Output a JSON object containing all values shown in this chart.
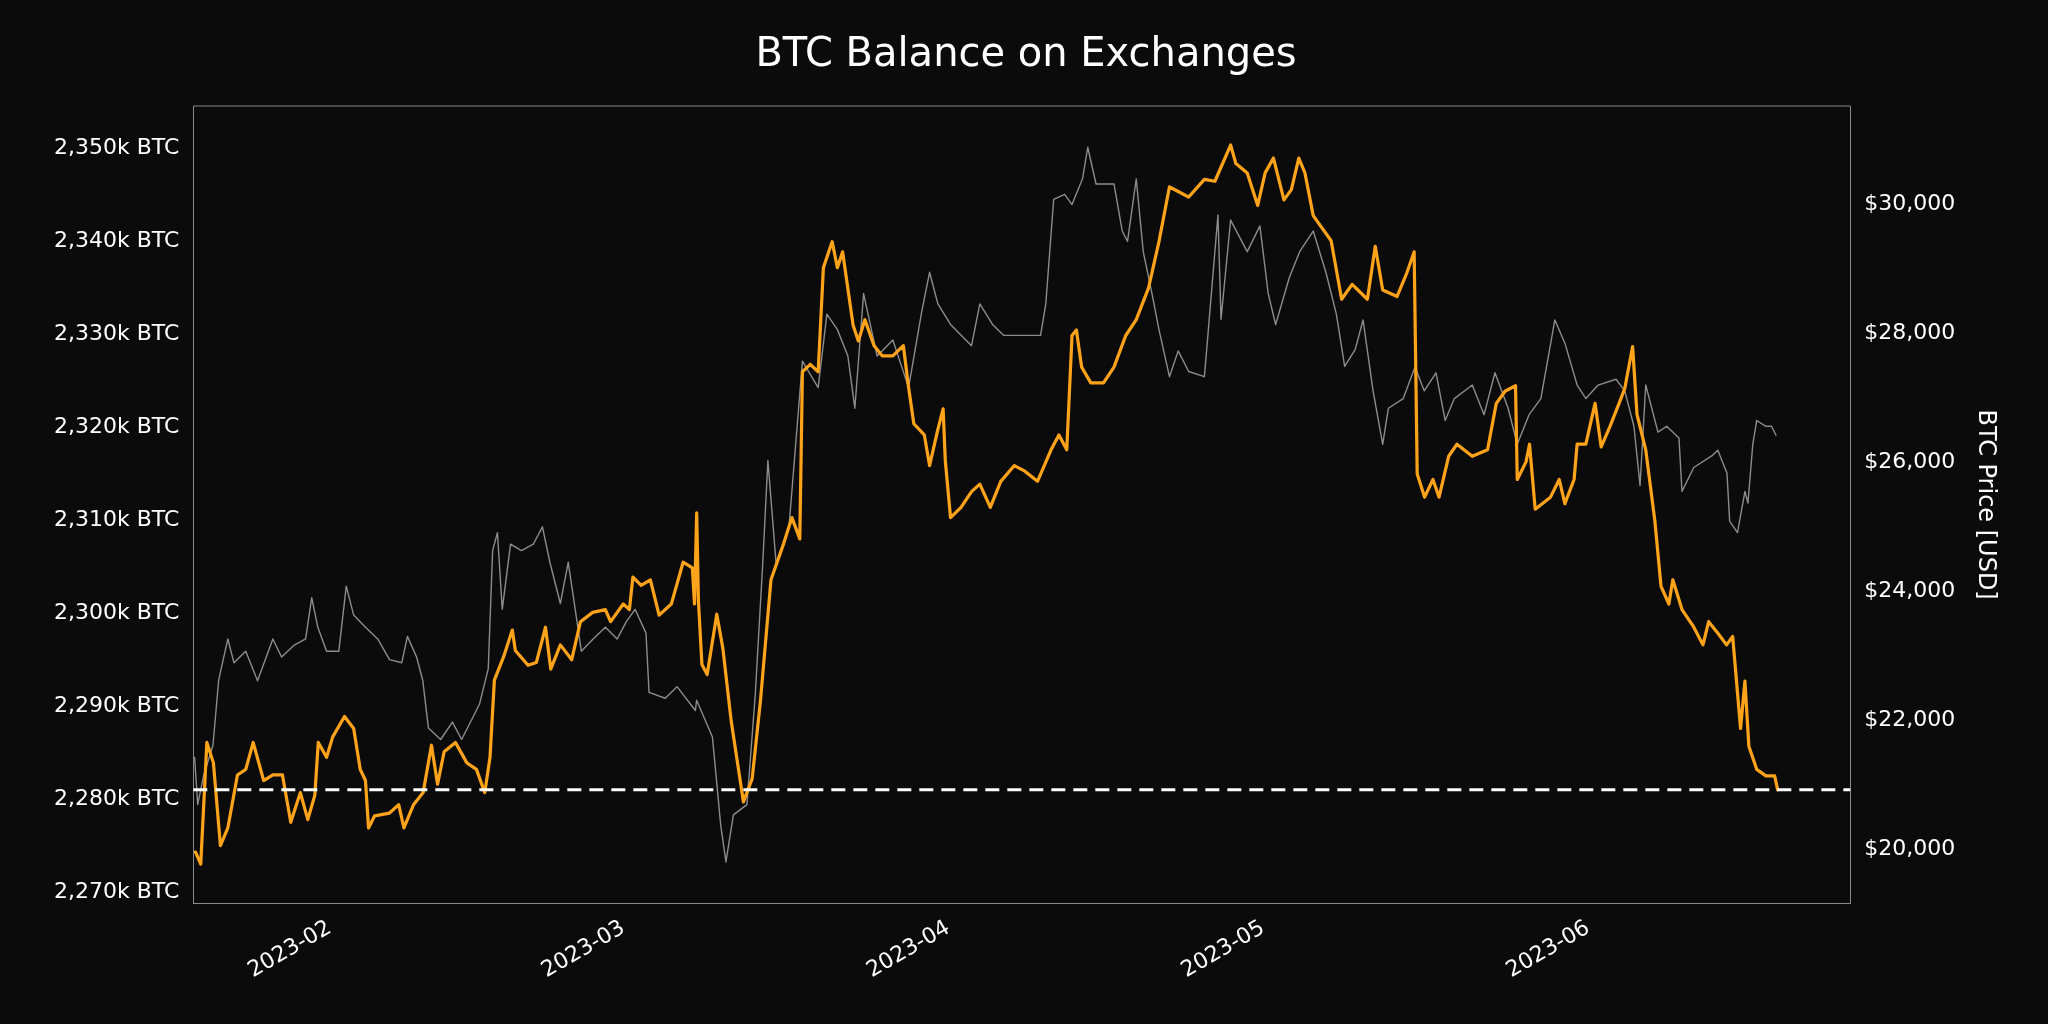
{
  "chart_data": {
    "type": "line",
    "title": "BTC Balance on Exchanges",
    "y2label": "BTC Price [USD]",
    "marker": "none",
    "line_style": "solid",
    "grid": false,
    "legend": false,
    "xlim": [
      "2023-01-19",
      "2023-06-26"
    ],
    "xticks": [
      "2023-02",
      "2023-03",
      "2023-04",
      "2023-05",
      "2023-06"
    ],
    "ylim": [
      2268.8,
      2354.6
    ],
    "yticks": [
      {
        "value": 2270,
        "label": "2,270k BTC"
      },
      {
        "value": 2280,
        "label": "2,280k BTC"
      },
      {
        "value": 2290,
        "label": "2,290k BTC"
      },
      {
        "value": 2300,
        "label": "2,300k BTC"
      },
      {
        "value": 2310,
        "label": "2,310k BTC"
      },
      {
        "value": 2320,
        "label": "2,320k BTC"
      },
      {
        "value": 2330,
        "label": "2,330k BTC"
      },
      {
        "value": 2340,
        "label": "2,340k BTC"
      },
      {
        "value": 2350,
        "label": "2,350k BTC"
      }
    ],
    "y2lim": [
      19160,
      31530
    ],
    "y2ticks": [
      {
        "value": 20000,
        "label": "$20,000"
      },
      {
        "value": 22000,
        "label": "$22,000"
      },
      {
        "value": 24000,
        "label": "$24,000"
      },
      {
        "value": 26000,
        "label": "$26,000"
      },
      {
        "value": 28000,
        "label": "$28,000"
      },
      {
        "value": 30000,
        "label": "$30,000"
      }
    ],
    "ref_lines": [
      {
        "axis": "y",
        "value": 2281,
        "color": "#ffffff",
        "line_style": "dashed"
      }
    ],
    "series": [
      {
        "color": "#ffa31a",
        "axis": "y",
        "x": [
          "2023-01-19T05:00",
          "2023-01-19T17:00",
          "2023-01-20T07:00",
          "2023-01-20T22:00",
          "2023-01-21T14:00",
          "2023-01-22T07:00",
          "2023-01-23T05:00",
          "2023-01-24",
          "2023-01-24T17:00",
          "2023-01-25T17:00",
          "2023-01-26T14:00",
          "2023-01-27T12:00",
          "2023-01-28T07:00",
          "2023-01-29T05:00",
          "2023-01-29T22:00",
          "2023-01-30T14:00",
          "2023-01-30T22:00",
          "2023-01-31T17:00",
          "2023-02-01T07:00",
          "2023-02-02T10:00",
          "2023-02-03T07:00",
          "2023-02-03T22:00",
          "2023-02-04T10:00",
          "2023-02-04T17:00",
          "2023-02-05T07:00",
          "2023-02-06T17:00",
          "2023-02-07T14:00",
          "2023-02-08T02:00",
          "2023-02-09",
          "2023-02-09T22:00",
          "2023-02-10T17:00",
          "2023-02-11T07:00",
          "2023-02-11T22:00",
          "2023-02-13",
          "2023-02-14T02:00",
          "2023-02-15",
          "2023-02-15T19:00",
          "2023-02-16T07:00",
          "2023-02-16T17:00",
          "2023-02-17T14:00",
          "2023-02-18T10:00",
          "2023-02-18T17:00",
          "2023-02-19T22:00",
          "2023-02-20T17:00",
          "2023-02-21T14:00",
          "2023-02-22T02:00",
          "2023-02-23",
          "2023-02-24T02:00",
          "2023-02-24T22:00",
          "2023-02-26T02:00",
          "2023-02-27T07:00",
          "2023-02-27T19:00",
          "2023-03-01",
          "2023-03-01T14:00",
          "2023-03-01T22:00",
          "2023-03-02T17:00",
          "2023-03-03T14:00",
          "2023-03-04T10:00",
          "2023-03-05T14:00",
          "2023-03-06T17:00",
          "2023-03-07T14:00",
          "2023-03-07T19:00",
          "2023-03-08",
          "2023-03-08T04:00",
          "2023-03-08T12:00",
          "2023-03-09",
          "2023-03-09T22:00",
          "2023-03-10T12:00",
          "2023-03-11T07:00",
          "2023-03-12T01:00",
          "2023-03-12T11:00",
          "2023-03-13T07:00",
          "2023-03-14T02:00",
          "2023-03-15T02:00",
          "2023-03-16T07:00",
          "2023-03-17T02:00",
          "2023-03-17T20:00",
          "2023-03-18T02:00",
          "2023-03-18T20:00",
          "2023-03-19T14:00",
          "2023-03-20T02:00",
          "2023-03-20T22:00",
          "2023-03-21T10:00",
          "2023-03-21T22:00",
          "2023-03-22T22:00",
          "2023-03-23T10:00",
          "2023-03-24T01:00",
          "2023-03-24T22:00",
          "2023-03-25T17:00",
          "2023-03-26T17:00",
          "2023-03-27T17:00",
          "2023-03-28T05:00",
          "2023-03-28T17:00",
          "2023-03-29T17:00",
          "2023-03-30T05:00",
          "2023-03-31",
          "2023-03-31T12:00",
          "2023-03-31T17:00",
          "2023-04-01T05:00",
          "2023-04-02T05:00",
          "2023-04-03T05:00",
          "2023-04-04",
          "2023-04-05",
          "2023-04-06",
          "2023-04-07T07:00",
          "2023-04-08T07:00",
          "2023-04-09T12:00",
          "2023-04-10T19:00",
          "2023-04-11T13:00",
          "2023-04-12T07:00",
          "2023-04-12T19:00",
          "2023-04-13T05:00",
          "2023-04-13T17:00",
          "2023-04-14T14:00",
          "2023-04-15T19:00",
          "2023-04-16T19:00",
          "2023-04-17T22:00",
          "2023-04-18T22:00",
          "2023-04-20T02:00",
          "2023-04-21T02:00",
          "2023-04-22T02:00",
          "2023-04-22T22:00",
          "2023-04-23T22:00",
          "2023-04-25T10:00",
          "2023-04-26T10:00",
          "2023-04-27T22:00",
          "2023-04-28T10:00",
          "2023-04-29T12:00",
          "2023-04-30T12:00",
          "2023-05-01T05:00",
          "2023-05-02",
          "2023-05-03",
          "2023-05-03T17:00",
          "2023-05-04T10:00",
          "2023-05-05",
          "2023-05-05T19:00",
          "2023-05-07T12:00",
          "2023-05-08T12:00",
          "2023-05-09T12:00",
          "2023-05-10T23:00",
          "2023-05-11T17:00",
          "2023-05-12T10:00",
          "2023-05-13T19:00",
          "2023-05-14T17:00",
          "2023-05-15T10:00",
          "2023-05-15T17:00",
          "2023-05-16T10:00",
          "2023-05-17T05:00",
          "2023-05-17T19:00",
          "2023-05-18T17:00",
          "2023-05-19T12:00",
          "2023-05-20T23:00",
          "2023-05-22T10:00",
          "2023-05-23T06:00",
          "2023-05-24T02:00",
          "2023-05-25T02:00",
          "2023-05-25T06:00",
          "2023-05-26T02:00",
          "2023-05-26T10:00",
          "2023-05-26T23:00",
          "2023-05-28T10:00",
          "2023-05-29T06:00",
          "2023-05-29T19:00",
          "2023-05-30T16:00",
          "2023-05-30T23:00",
          "2023-05-31T19:00",
          "2023-06-01T16:00",
          "2023-06-02T06:00",
          "2023-06-03T02:00",
          "2023-06-03T23:00",
          "2023-06-04T12:00",
          "2023-06-05T06:00",
          "2023-06-05T16:00",
          "2023-06-06T12:00",
          "2023-06-07T09:00",
          "2023-06-07T23:00",
          "2023-06-08T17:00",
          "2023-06-09T02:00",
          "2023-06-09T23:00",
          "2023-06-11T02:00",
          "2023-06-11T23:00",
          "2023-06-12T12:00",
          "2023-06-13T10:00",
          "2023-06-14T05:00",
          "2023-06-14T19:00",
          "2023-06-15T13:00",
          "2023-06-15T23:00",
          "2023-06-16T08:00",
          "2023-06-17T02:00",
          "2023-06-17T23:00",
          "2023-06-18T19:00",
          "2023-06-19T02:00"
        ],
        "values": [
          2274.3,
          2273.0,
          2286.1,
          2283.9,
          2275.0,
          2276.9,
          2282.6,
          2283.2,
          2286.1,
          2282.0,
          2282.6,
          2282.6,
          2277.5,
          2280.7,
          2277.8,
          2280.4,
          2286.1,
          2284.5,
          2286.7,
          2288.9,
          2287.6,
          2283.2,
          2282.0,
          2276.9,
          2278.2,
          2278.5,
          2279.4,
          2276.9,
          2279.4,
          2280.7,
          2285.8,
          2281.6,
          2285.1,
          2286.1,
          2283.9,
          2283.2,
          2280.7,
          2284.5,
          2292.8,
          2295.3,
          2298.2,
          2296.0,
          2294.4,
          2294.7,
          2298.5,
          2294.0,
          2296.6,
          2295.0,
          2299.1,
          2300.1,
          2300.4,
          2299.1,
          2301.0,
          2300.4,
          2303.9,
          2303.0,
          2303.6,
          2299.8,
          2301.0,
          2305.5,
          2304.9,
          2301.0,
          2310.8,
          2301.3,
          2294.5,
          2293.4,
          2299.9,
          2296.2,
          2288.4,
          2282.8,
          2279.7,
          2282.2,
          2290.6,
          2303.6,
          2307.5,
          2310.3,
          2308.0,
          2326.0,
          2326.8,
          2326.0,
          2337.2,
          2340.0,
          2337.2,
          2338.9,
          2331.0,
          2329.3,
          2331.6,
          2328.8,
          2327.7,
          2327.7,
          2328.8,
          2324.3,
          2320.4,
          2319.2,
          2315.9,
          2319.8,
          2322.0,
          2316.4,
          2310.3,
          2311.4,
          2313.1,
          2313.9,
          2311.4,
          2314.2,
          2315.9,
          2315.3,
          2314.2,
          2317.6,
          2319.2,
          2317.6,
          2329.9,
          2330.5,
          2326.5,
          2324.8,
          2324.8,
          2326.5,
          2329.9,
          2331.6,
          2335.0,
          2340.0,
          2345.9,
          2345.4,
          2344.8,
          2346.7,
          2346.5,
          2350.4,
          2348.4,
          2347.4,
          2343.9,
          2347.4,
          2349.0,
          2344.5,
          2345.6,
          2349.0,
          2347.4,
          2342.8,
          2340.1,
          2333.8,
          2335.4,
          2333.8,
          2339.5,
          2334.8,
          2334.1,
          2336.6,
          2338.9,
          2315.0,
          2312.5,
          2314.4,
          2312.5,
          2316.9,
          2318.2,
          2316.9,
          2317.6,
          2322.6,
          2323.9,
          2324.5,
          2314.4,
          2316.3,
          2318.2,
          2311.2,
          2312.5,
          2314.4,
          2311.8,
          2314.4,
          2318.2,
          2318.2,
          2322.6,
          2317.9,
          2320.1,
          2322.6,
          2324.2,
          2328.7,
          2321.4,
          2317.6,
          2309.9,
          2302.9,
          2301.0,
          2303.6,
          2300.4,
          2298.5,
          2296.6,
          2299.1,
          2297.8,
          2296.6,
          2297.5,
          2287.6,
          2292.7,
          2285.7,
          2283.2,
          2282.5,
          2282.5,
          2281.0
        ]
      },
      {
        "color": "#8c8c8c",
        "axis": "y2",
        "x": [
          "2023-01-19T03:00",
          "2023-01-19T10:00",
          "2023-01-20",
          "2023-01-20T21:00",
          "2023-01-21T10:00",
          "2023-01-22T07:00",
          "2023-01-22T21:00",
          "2023-01-24",
          "2023-01-25T03:00",
          "2023-01-26T14:00",
          "2023-01-27T10:00",
          "2023-01-28T14:00",
          "2023-01-29T17:00",
          "2023-01-30T07:00",
          "2023-01-30T21:00",
          "2023-01-31T17:00",
          "2023-02-01T21:00",
          "2023-02-02T14:00",
          "2023-02-03T07:00",
          "2023-02-04T10:00",
          "2023-02-05T14:00",
          "2023-02-06T17:00",
          "2023-02-07T21:00",
          "2023-02-08T10:00",
          "2023-02-09T07:00",
          "2023-02-09T21:00",
          "2023-02-10T10:00",
          "2023-02-11T14:00",
          "2023-02-12T17:00",
          "2023-02-13T14:00",
          "2023-02-14T17:00",
          "2023-02-15T07:00",
          "2023-02-16T03:00",
          "2023-02-16T13:00",
          "2023-02-17",
          "2023-02-17T11:00",
          "2023-02-18T06:00",
          "2023-02-19T07:00",
          "2023-02-20T10:00",
          "2023-02-21T07:00",
          "2023-02-22",
          "2023-02-23",
          "2023-02-23T18:00",
          "2023-02-24T10:00",
          "2023-02-25",
          "2023-02-26T03:00",
          "2023-02-27T07:00",
          "2023-02-28T10:00",
          "2023-03-01T07:00",
          "2023-03-02T03:00",
          "2023-03-03T04:00",
          "2023-03-03T11:00",
          "2023-03-05",
          "2023-03-06T03:00",
          "2023-03-07T21:00",
          "2023-03-08",
          "2023-03-09T12:00",
          "2023-03-10T07:00",
          "2023-03-10T19:00",
          "2023-03-11T12:00",
          "2023-03-12T19:00",
          "2023-03-13T14:00",
          "2023-03-14T07:00",
          "2023-03-14T19:00",
          "2023-03-15T14:00",
          "2023-03-16T19:00",
          "2023-03-18T02:00",
          "2023-03-19T14:00",
          "2023-03-20T10:00",
          "2023-03-21T10:00",
          "2023-03-22T10:00",
          "2023-03-23T02:00",
          "2023-03-23T22:00",
          "2023-03-25T05:00",
          "2023-03-26T17:00",
          "2023-03-28T05:00",
          "2023-03-29T10:00",
          "2023-03-30T05:00",
          "2023-03-31",
          "2023-04-01T05:00",
          "2023-04-03T05:00",
          "2023-04-04",
          "2023-04-05T05:00",
          "2023-04-06T07:00",
          "2023-04-07T19:00",
          "2023-04-09T19:00",
          "2023-04-10T07:00",
          "2023-04-11T01:00",
          "2023-04-12T02:00",
          "2023-04-12T19:00",
          "2023-04-13T19:00",
          "2023-04-14T07:00",
          "2023-04-15T02:00",
          "2023-04-16T19:00",
          "2023-04-17T14:00",
          "2023-04-18T02:00",
          "2023-04-18T22:00",
          "2023-04-19T14:00",
          "2023-04-20T10:00",
          "2023-04-21T02:00",
          "2023-04-22T02:00",
          "2023-04-22T22:00",
          "2023-04-23T22:00",
          "2023-04-25T10:00",
          "2023-04-26T17:00",
          "2023-04-27",
          "2023-04-27T22:00",
          "2023-04-29T12:00",
          "2023-04-30T17:00",
          "2023-05-01T12:00",
          "2023-05-02T05:00",
          "2023-05-03T12:00",
          "2023-05-04T12:00",
          "2023-05-05T19:00",
          "2023-05-07",
          "2023-05-08",
          "2023-05-08T19:00",
          "2023-05-09T19:00",
          "2023-05-10T13:00",
          "2023-05-11T12:00",
          "2023-05-12T10:00",
          "2023-05-12T23:00",
          "2023-05-14T09:00",
          "2023-05-15T12:00",
          "2023-05-16T09:00",
          "2023-05-17T12:00",
          "2023-05-18T09:00",
          "2023-05-19T06:00",
          "2023-05-20T23:00",
          "2023-05-22T02:00",
          "2023-05-23T03:00",
          "2023-05-24T09:00",
          "2023-05-25T06:00",
          "2023-05-26T09:00",
          "2023-05-27T12:00",
          "2023-05-28T20:00",
          "2023-05-29T19:00",
          "2023-05-30T23:00",
          "2023-05-31T19:00",
          "2023-06-01T23:00",
          "2023-06-03T16:00",
          "2023-06-04T12:00",
          "2023-06-05T09:00",
          "2023-06-05T23:00",
          "2023-06-06T12:00",
          "2023-06-07T16:00",
          "2023-06-08T12:00",
          "2023-06-09T16:00",
          "2023-06-09T23:00",
          "2023-06-11T02:00",
          "2023-06-12T19:00",
          "2023-06-13T09:00",
          "2023-06-14T06:00",
          "2023-06-14T12:00",
          "2023-06-15T06:00",
          "2023-06-15T23:00",
          "2023-06-16T06:00",
          "2023-06-16T17:00",
          "2023-06-17T02:00",
          "2023-06-17T23:00",
          "2023-06-18T12:00",
          "2023-06-18T22:00"
        ],
        "values": [
          21420,
          20690,
          21150,
          21610,
          22620,
          23260,
          22890,
          23070,
          22610,
          23260,
          22980,
          23160,
          23260,
          23900,
          23440,
          23070,
          23070,
          24080,
          23630,
          23440,
          23260,
          22940,
          22890,
          23300,
          22980,
          22620,
          21880,
          21700,
          21970,
          21700,
          22060,
          22250,
          22800,
          24630,
          24910,
          23720,
          24730,
          24630,
          24730,
          25000,
          24450,
          23810,
          24450,
          23720,
          23070,
          23260,
          23440,
          23260,
          23530,
          23720,
          23350,
          22430,
          22340,
          22520,
          22150,
          22310,
          21740,
          20370,
          19800,
          20530,
          20690,
          22390,
          24410,
          26030,
          24410,
          24980,
          27570,
          27160,
          28300,
          28060,
          27650,
          26840,
          28620,
          27650,
          27900,
          27160,
          28300,
          28950,
          28460,
          28140,
          27810,
          28460,
          28140,
          27970,
          27970,
          27970,
          28460,
          30080,
          30160,
          30000,
          30400,
          30890,
          30320,
          30320,
          29590,
          29430,
          30400,
          29270,
          28620,
          28060,
          27330,
          27730,
          27410,
          27330,
          29840,
          28220,
          29760,
          29270,
          29670,
          28620,
          28140,
          28860,
          29270,
          29590,
          28950,
          28300,
          27490,
          27750,
          28210,
          27110,
          26280,
          26840,
          26990,
          27480,
          27110,
          27390,
          26650,
          26990,
          27200,
          26740,
          27390,
          26840,
          26280,
          26740,
          26990,
          28210,
          27850,
          27200,
          26990,
          27200,
          27290,
          27110,
          26560,
          25640,
          27200,
          26470,
          26560,
          26380,
          25550,
          25920,
          26100,
          26190,
          25830,
          25090,
          24910,
          25550,
          25370,
          26280,
          26650,
          26560,
          26560,
          26420
        ]
      }
    ]
  }
}
